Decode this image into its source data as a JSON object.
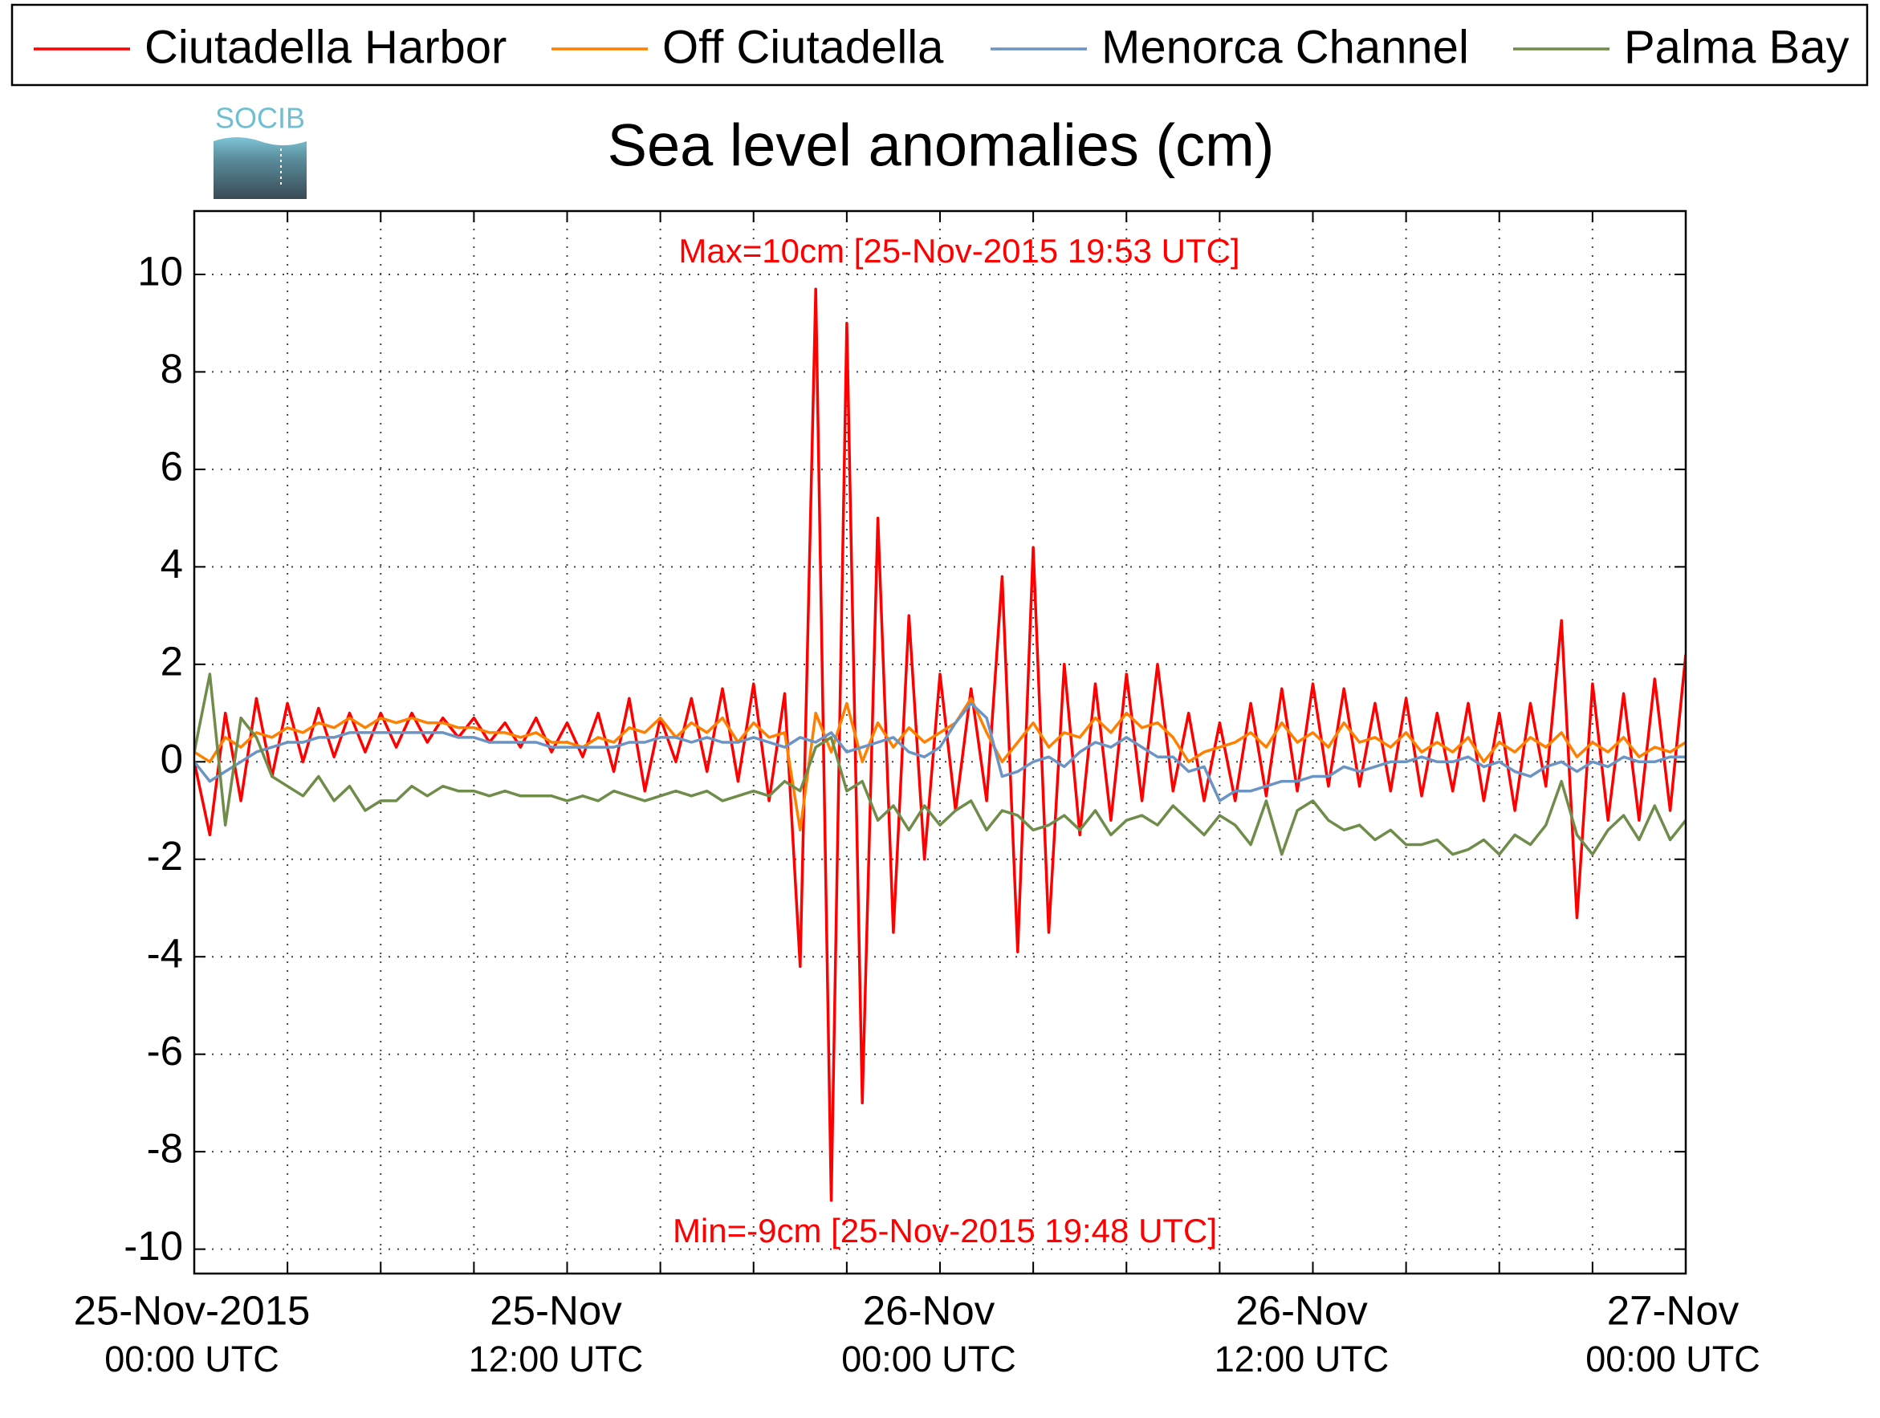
{
  "chart_data": {
    "type": "line",
    "title": "Sea level anomalies (cm)",
    "logo": "SOCIB",
    "annotations": [
      "Max=10cm [25-Nov-2015 19:53 UTC]",
      "Min=-9cm [25-Nov-2015 19:48 UTC]"
    ],
    "annotation_color": "#ff0000",
    "x": [
      "2015-11-25 00:00",
      "2015-11-25 00:30",
      "2015-11-25 01:00",
      "2015-11-25 01:30",
      "2015-11-25 02:00",
      "2015-11-25 02:30",
      "2015-11-25 03:00",
      "2015-11-25 03:30",
      "2015-11-25 04:00",
      "2015-11-25 04:30",
      "2015-11-25 05:00",
      "2015-11-25 05:30",
      "2015-11-25 06:00",
      "2015-11-25 06:30",
      "2015-11-25 07:00",
      "2015-11-25 07:30",
      "2015-11-25 08:00",
      "2015-11-25 08:30",
      "2015-11-25 09:00",
      "2015-11-25 09:30",
      "2015-11-25 10:00",
      "2015-11-25 10:30",
      "2015-11-25 11:00",
      "2015-11-25 11:30",
      "2015-11-25 12:00",
      "2015-11-25 12:30",
      "2015-11-25 13:00",
      "2015-11-25 13:30",
      "2015-11-25 14:00",
      "2015-11-25 14:30",
      "2015-11-25 15:00",
      "2015-11-25 15:30",
      "2015-11-25 16:00",
      "2015-11-25 16:30",
      "2015-11-25 17:00",
      "2015-11-25 17:30",
      "2015-11-25 18:00",
      "2015-11-25 18:30",
      "2015-11-25 19:00",
      "2015-11-25 19:30",
      "2015-11-25 20:00",
      "2015-11-25 20:30",
      "2015-11-25 21:00",
      "2015-11-25 21:30",
      "2015-11-25 22:00",
      "2015-11-25 22:30",
      "2015-11-25 23:00",
      "2015-11-25 23:30",
      "2015-11-26 00:00",
      "2015-11-26 00:30",
      "2015-11-26 01:00",
      "2015-11-26 01:30",
      "2015-11-26 02:00",
      "2015-11-26 02:30",
      "2015-11-26 03:00",
      "2015-11-26 03:30",
      "2015-11-26 04:00",
      "2015-11-26 04:30",
      "2015-11-26 05:00",
      "2015-11-26 05:30",
      "2015-11-26 06:00",
      "2015-11-26 06:30",
      "2015-11-26 07:00",
      "2015-11-26 07:30",
      "2015-11-26 08:00",
      "2015-11-26 08:30",
      "2015-11-26 09:00",
      "2015-11-26 09:30",
      "2015-11-26 10:00",
      "2015-11-26 10:30",
      "2015-11-26 11:00",
      "2015-11-26 11:30",
      "2015-11-26 12:00",
      "2015-11-26 12:30",
      "2015-11-26 13:00",
      "2015-11-26 13:30",
      "2015-11-26 14:00",
      "2015-11-26 14:30",
      "2015-11-26 15:00",
      "2015-11-26 15:30",
      "2015-11-26 16:00",
      "2015-11-26 16:30",
      "2015-11-26 17:00",
      "2015-11-26 17:30",
      "2015-11-26 18:00",
      "2015-11-26 18:30",
      "2015-11-26 19:00",
      "2015-11-26 19:30",
      "2015-11-26 20:00",
      "2015-11-26 20:30",
      "2015-11-26 21:00",
      "2015-11-26 21:30",
      "2015-11-26 22:00",
      "2015-11-26 22:30",
      "2015-11-26 23:00",
      "2015-11-26 23:30",
      "2015-11-27 00:00"
    ],
    "series": [
      {
        "name": "Ciutadella Harbor",
        "color": "#ff0000",
        "values": [
          0,
          -1.5,
          1.0,
          -0.8,
          1.3,
          -0.3,
          1.2,
          0.0,
          1.1,
          0.1,
          1.0,
          0.2,
          1.0,
          0.3,
          1.0,
          0.4,
          0.9,
          0.5,
          0.9,
          0.4,
          0.8,
          0.3,
          0.9,
          0.2,
          0.8,
          0.1,
          1.0,
          -0.2,
          1.3,
          -0.6,
          0.9,
          0.0,
          1.3,
          -0.2,
          1.5,
          -0.4,
          1.6,
          -0.8,
          1.4,
          -4.2,
          9.7,
          -9.0,
          9.0,
          -7.0,
          5.0,
          -3.5,
          3.0,
          -2.0,
          1.8,
          -1.0,
          1.5,
          -0.8,
          3.8,
          -3.9,
          4.4,
          -3.5,
          2.0,
          -1.5,
          1.6,
          -1.2,
          1.8,
          -0.8,
          2.0,
          -0.6,
          1.0,
          -0.8,
          0.8,
          -0.8,
          1.2,
          -0.7,
          1.5,
          -0.6,
          1.6,
          -0.5,
          1.5,
          -0.5,
          1.2,
          -0.6,
          1.3,
          -0.7,
          1.0,
          -0.6,
          1.2,
          -0.8,
          1.0,
          -1.0,
          1.2,
          -0.5,
          2.9,
          -3.2,
          1.6,
          -1.2,
          1.4,
          -1.2,
          1.7,
          -1.0,
          2.2
        ]
      },
      {
        "name": "Off Ciutadella",
        "color": "#ff8000",
        "values": [
          0.2,
          0.0,
          0.5,
          0.3,
          0.6,
          0.5,
          0.7,
          0.6,
          0.8,
          0.7,
          0.9,
          0.7,
          0.9,
          0.8,
          0.9,
          0.8,
          0.8,
          0.7,
          0.7,
          0.6,
          0.6,
          0.5,
          0.6,
          0.4,
          0.4,
          0.3,
          0.5,
          0.4,
          0.7,
          0.6,
          0.9,
          0.5,
          0.8,
          0.6,
          0.9,
          0.4,
          0.8,
          0.5,
          0.6,
          -1.4,
          1.0,
          0.2,
          1.2,
          0.0,
          0.8,
          0.3,
          0.7,
          0.4,
          0.6,
          0.8,
          1.3,
          0.6,
          0.0,
          0.4,
          0.8,
          0.3,
          0.6,
          0.5,
          0.9,
          0.6,
          1.0,
          0.7,
          0.8,
          0.5,
          0.0,
          0.2,
          0.3,
          0.4,
          0.6,
          0.3,
          0.8,
          0.4,
          0.6,
          0.3,
          0.8,
          0.4,
          0.5,
          0.3,
          0.6,
          0.2,
          0.4,
          0.2,
          0.5,
          0.0,
          0.4,
          0.2,
          0.5,
          0.3,
          0.6,
          0.1,
          0.4,
          0.2,
          0.5,
          0.1,
          0.3,
          0.2,
          0.4
        ]
      },
      {
        "name": "Menorca Channel",
        "color": "#6b93c4",
        "values": [
          0,
          -0.4,
          -0.2,
          0.0,
          0.2,
          0.3,
          0.4,
          0.4,
          0.5,
          0.5,
          0.6,
          0.6,
          0.6,
          0.6,
          0.6,
          0.6,
          0.6,
          0.5,
          0.5,
          0.4,
          0.4,
          0.4,
          0.4,
          0.3,
          0.3,
          0.3,
          0.3,
          0.3,
          0.4,
          0.4,
          0.5,
          0.5,
          0.4,
          0.5,
          0.4,
          0.4,
          0.5,
          0.4,
          0.3,
          0.5,
          0.4,
          0.6,
          0.2,
          0.3,
          0.4,
          0.5,
          0.2,
          0.1,
          0.3,
          0.8,
          1.2,
          0.9,
          -0.3,
          -0.2,
          0.0,
          0.1,
          -0.1,
          0.2,
          0.4,
          0.3,
          0.5,
          0.3,
          0.1,
          0.1,
          -0.2,
          -0.1,
          -0.8,
          -0.6,
          -0.6,
          -0.5,
          -0.4,
          -0.4,
          -0.3,
          -0.3,
          -0.1,
          -0.2,
          -0.1,
          0.0,
          0.0,
          0.1,
          0.0,
          0.0,
          0.1,
          -0.1,
          0.0,
          -0.2,
          -0.3,
          -0.1,
          0.0,
          -0.2,
          0.0,
          -0.1,
          0.1,
          0.0,
          0.0,
          0.1,
          0.1
        ]
      },
      {
        "name": "Palma Bay",
        "color": "#6f8c4a",
        "values": [
          0.2,
          1.8,
          -1.3,
          0.9,
          0.5,
          -0.3,
          -0.5,
          -0.7,
          -0.3,
          -0.8,
          -0.5,
          -1.0,
          -0.8,
          -0.8,
          -0.5,
          -0.7,
          -0.5,
          -0.6,
          -0.6,
          -0.7,
          -0.6,
          -0.7,
          -0.7,
          -0.7,
          -0.8,
          -0.7,
          -0.8,
          -0.6,
          -0.7,
          -0.8,
          -0.7,
          -0.6,
          -0.7,
          -0.6,
          -0.8,
          -0.7,
          -0.6,
          -0.7,
          -0.4,
          -0.6,
          0.3,
          0.5,
          -0.6,
          -0.4,
          -1.2,
          -0.9,
          -1.4,
          -0.9,
          -1.3,
          -1.0,
          -0.8,
          -1.4,
          -1.0,
          -1.1,
          -1.4,
          -1.3,
          -1.1,
          -1.4,
          -1.0,
          -1.5,
          -1.2,
          -1.1,
          -1.3,
          -0.9,
          -1.2,
          -1.5,
          -1.1,
          -1.3,
          -1.7,
          -0.8,
          -1.9,
          -1.0,
          -0.8,
          -1.2,
          -1.4,
          -1.3,
          -1.6,
          -1.4,
          -1.7,
          -1.7,
          -1.6,
          -1.9,
          -1.8,
          -1.6,
          -1.9,
          -1.5,
          -1.7,
          -1.3,
          -0.4,
          -1.5,
          -1.9,
          -1.4,
          -1.1,
          -1.6,
          -0.9,
          -1.6,
          -1.2
        ]
      }
    ],
    "xlim": [
      "2015-11-25 00:00",
      "2015-11-27 00:00"
    ],
    "xticks": [
      {
        "value": "2015-11-25 00:00",
        "label": "25-Nov-2015",
        "sublabel": "00:00 UTC"
      },
      "2015-11-25 03:00",
      "2015-11-25 06:00",
      "2015-11-25 09:00",
      {
        "value": "2015-11-25 12:00",
        "label": "25-Nov",
        "sublabel": "12:00 UTC"
      },
      "2015-11-25 15:00",
      "2015-11-25 18:00",
      "2015-11-25 21:00",
      {
        "value": "2015-11-26 00:00",
        "label": "26-Nov",
        "sublabel": "00:00 UTC"
      },
      "2015-11-26 03:00",
      "2015-11-26 06:00",
      "2015-11-26 09:00",
      {
        "value": "2015-11-26 12:00",
        "label": "26-Nov",
        "sublabel": "12:00 UTC"
      },
      "2015-11-26 15:00",
      "2015-11-26 18:00",
      "2015-11-26 21:00",
      {
        "value": "2015-11-27 00:00",
        "label": "27-Nov",
        "sublabel": "00:00 UTC"
      }
    ],
    "ylim": [
      -10.5,
      11.3
    ],
    "yticks": [
      10,
      8,
      6,
      4,
      2,
      0,
      -2,
      -4,
      -6,
      -8,
      -10
    ],
    "grid": true,
    "legend": "top"
  }
}
